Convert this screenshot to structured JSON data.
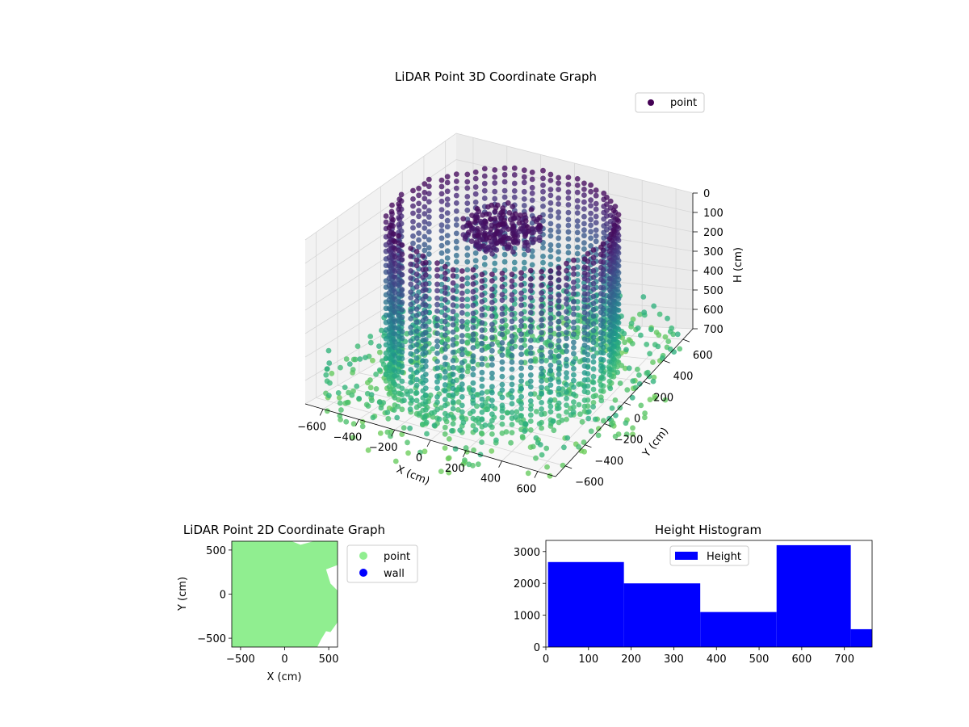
{
  "chart_data": [
    {
      "type": "scatter",
      "title": "LiDAR Point 3D Coordinate Graph",
      "xlabel": "X (cm)",
      "ylabel": "Y (cm)",
      "zlabel": "H (cm)",
      "xlim": [
        -700,
        700
      ],
      "ylim": [
        -700,
        700
      ],
      "zlim": [
        700,
        0
      ],
      "x_ticks": [
        -600,
        -400,
        -200,
        0,
        200,
        400,
        600
      ],
      "y_ticks": [
        -600,
        -400,
        -200,
        0,
        200,
        400,
        600
      ],
      "z_ticks": [
        0,
        100,
        200,
        300,
        400,
        500,
        600,
        700
      ],
      "grid": true,
      "legend": [
        {
          "label": "point",
          "color": "#440154"
        }
      ],
      "legend_position": "top-right",
      "colormap": "viridis",
      "series": [
        {
          "name": "point",
          "shape": "ring wall",
          "radius": 560,
          "h_range": [
            0,
            700
          ]
        },
        {
          "name": "point",
          "shape": "roof cluster",
          "radius": 200,
          "h_range": [
            0,
            80
          ]
        },
        {
          "name": "point",
          "shape": "floor scatter",
          "radius": [
            560,
            900
          ],
          "h_range": [
            600,
            760
          ]
        }
      ]
    },
    {
      "type": "scatter",
      "title": "LiDAR Point 2D Coordinate Graph",
      "xlabel": "X (cm)",
      "ylabel": "Y (cm)",
      "xlim": [
        -600,
        600
      ],
      "ylim": [
        -600,
        600
      ],
      "x_ticks": [
        -500,
        0,
        500
      ],
      "y_ticks": [
        -500,
        0,
        500
      ],
      "legend": [
        {
          "label": "point",
          "color": "#90ee90"
        },
        {
          "label": "wall",
          "color": "#0000ff"
        }
      ],
      "legend_position": "outside-right",
      "series": [
        {
          "name": "point",
          "color": "#90ee90",
          "coverage": "filled"
        }
      ]
    },
    {
      "type": "bar",
      "title": "Height Histogram",
      "xlabel": "",
      "ylabel": "",
      "xlim": [
        0,
        765
      ],
      "ylim": [
        0,
        3350
      ],
      "x_ticks": [
        0,
        100,
        200,
        300,
        400,
        500,
        600,
        700
      ],
      "y_ticks": [
        0,
        1000,
        2000,
        3000
      ],
      "legend": [
        {
          "label": "Height",
          "color": "#0000ff"
        }
      ],
      "legend_position": "top-center",
      "color": "#0000ff",
      "bins": [
        {
          "start": 5,
          "end": 183,
          "count": 2670
        },
        {
          "start": 183,
          "end": 362,
          "count": 2000
        },
        {
          "start": 362,
          "end": 541,
          "count": 1100
        },
        {
          "start": 541,
          "end": 715,
          "count": 3200
        },
        {
          "start": 715,
          "end": 765,
          "count": 560
        }
      ]
    }
  ]
}
